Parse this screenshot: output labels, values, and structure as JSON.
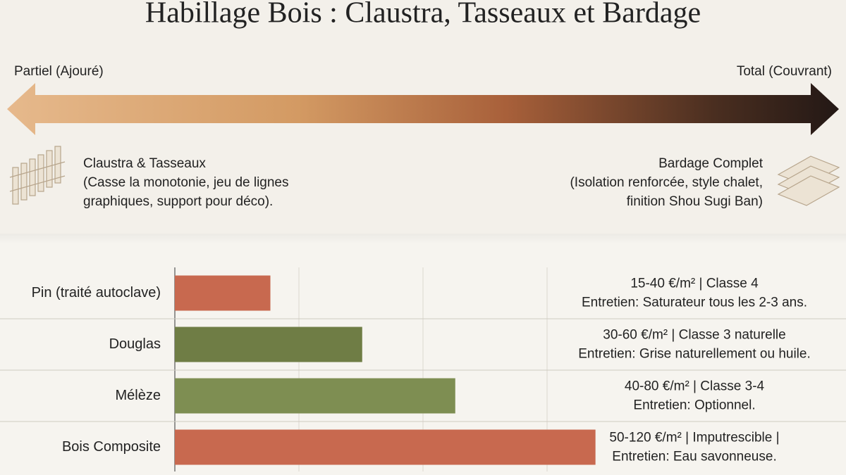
{
  "header": {
    "title": "Habillage Bois : Claustra, Tasseaux et Bardage",
    "left_label": "Partiel (Ajouré)",
    "right_label": "Total (Couvrant)",
    "left_heading": "Claustra & Tasseaux",
    "left_lines": [
      "(Casse la monotonie, jeu de lignes",
      "graphiques, support pour déco)."
    ],
    "right_heading": "Bardage Complet",
    "right_lines": [
      "(Isolation renforcée, style chalet,",
      "finition Shou Sugi Ban)"
    ]
  },
  "chart_data": {
    "type": "bar",
    "orientation": "horizontal",
    "categories": [
      "Pin (traité autoclave)",
      "Douglas",
      "Mélèze",
      "Bois Composite"
    ],
    "values": [
      0.77,
      1.51,
      2.26,
      3.39
    ],
    "colors": [
      "#c8694f",
      "#6f7d45",
      "#7e8e52",
      "#c8694f"
    ],
    "xlim": [
      0,
      4
    ],
    "notes": [
      [
        "15-40 €/m² | Classe 4",
        "Entretien: Saturateur tous les 2-3 ans."
      ],
      [
        "30-60 €/m² | Classe 3 naturelle",
        "Entretien: Grise naturellement ou huile."
      ],
      [
        "40-80 €/m² | Classe 3-4",
        "Entretien: Optionnel."
      ],
      [
        "50-120 €/m² | Imputrescible |",
        "Entretien: Eau savonneuse."
      ]
    ]
  }
}
